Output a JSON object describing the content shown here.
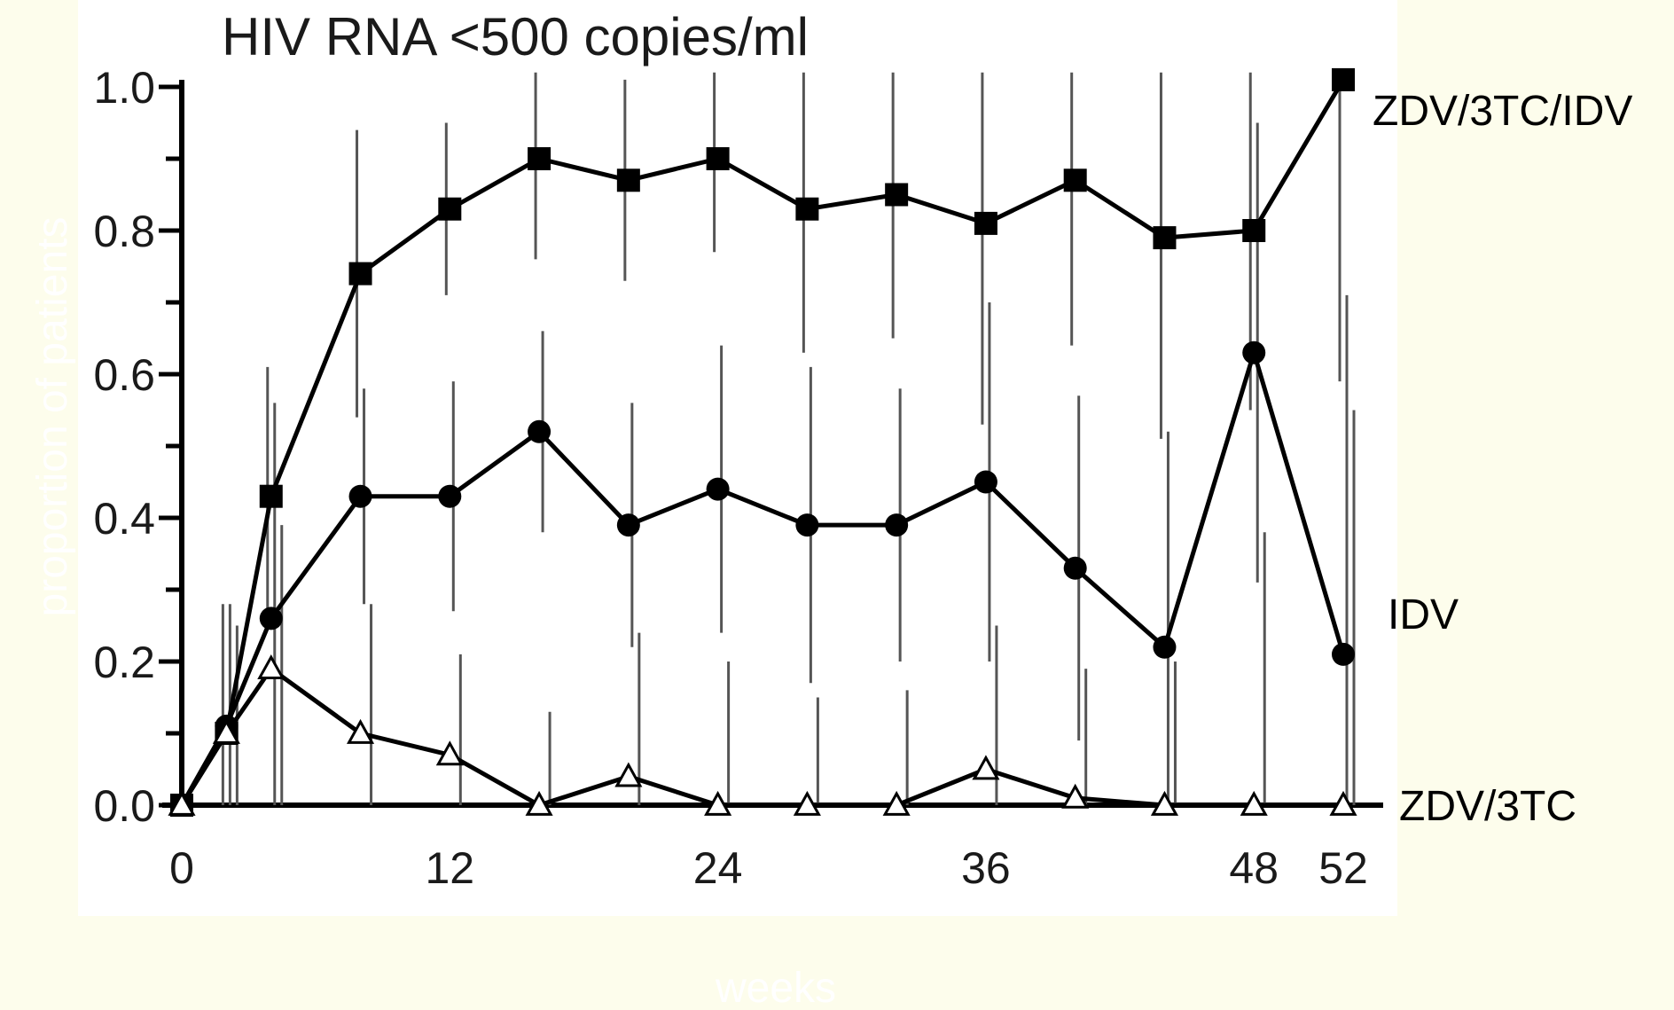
{
  "chart_data": {
    "type": "line",
    "title": "HIV RNA <500 copies/ml",
    "xlabel": "weeks",
    "ylabel": "proportion of patients",
    "xlim": [
      0,
      52
    ],
    "ylim": [
      0,
      1.0
    ],
    "x_ticks": [
      0,
      12,
      24,
      36,
      48,
      52
    ],
    "y_ticks": [
      "0.0",
      "0.2",
      "0.4",
      "0.6",
      "0.8",
      "1.0"
    ],
    "grid": false,
    "legend": "right-end labels",
    "series": [
      {
        "name": "ZDV/3TC/IDV",
        "marker": "square",
        "x": [
          0,
          2,
          4,
          8,
          12,
          16,
          20,
          24,
          28,
          32,
          36,
          40,
          44,
          48,
          52
        ],
        "y": [
          0.0,
          0.1,
          0.43,
          0.74,
          0.83,
          0.9,
          0.87,
          0.9,
          0.83,
          0.85,
          0.81,
          0.87,
          0.79,
          0.8,
          1.01
        ]
      },
      {
        "name": "IDV",
        "marker": "circle",
        "x": [
          0,
          2,
          4,
          8,
          12,
          16,
          20,
          24,
          28,
          32,
          36,
          40,
          44,
          48,
          52
        ],
        "y": [
          0.0,
          0.11,
          0.26,
          0.43,
          0.43,
          0.52,
          0.39,
          0.44,
          0.39,
          0.39,
          0.45,
          0.33,
          0.22,
          0.63,
          0.21
        ]
      },
      {
        "name": "ZDV/3TC",
        "marker": "triangle-open",
        "x": [
          0,
          2,
          4,
          8,
          12,
          16,
          20,
          24,
          28,
          32,
          36,
          40,
          44,
          48,
          52
        ],
        "y": [
          0.0,
          0.1,
          0.19,
          0.1,
          0.07,
          0.0,
          0.04,
          0.0,
          0.0,
          0.0,
          0.05,
          0.01,
          0.0,
          0.0,
          0.0
        ]
      }
    ],
    "colors": {
      "line": "#000000",
      "error_bar": "#555555",
      "plot_background": "#ffffff",
      "page_background": "#fdfdec",
      "axis_title": "#ffffff"
    }
  }
}
